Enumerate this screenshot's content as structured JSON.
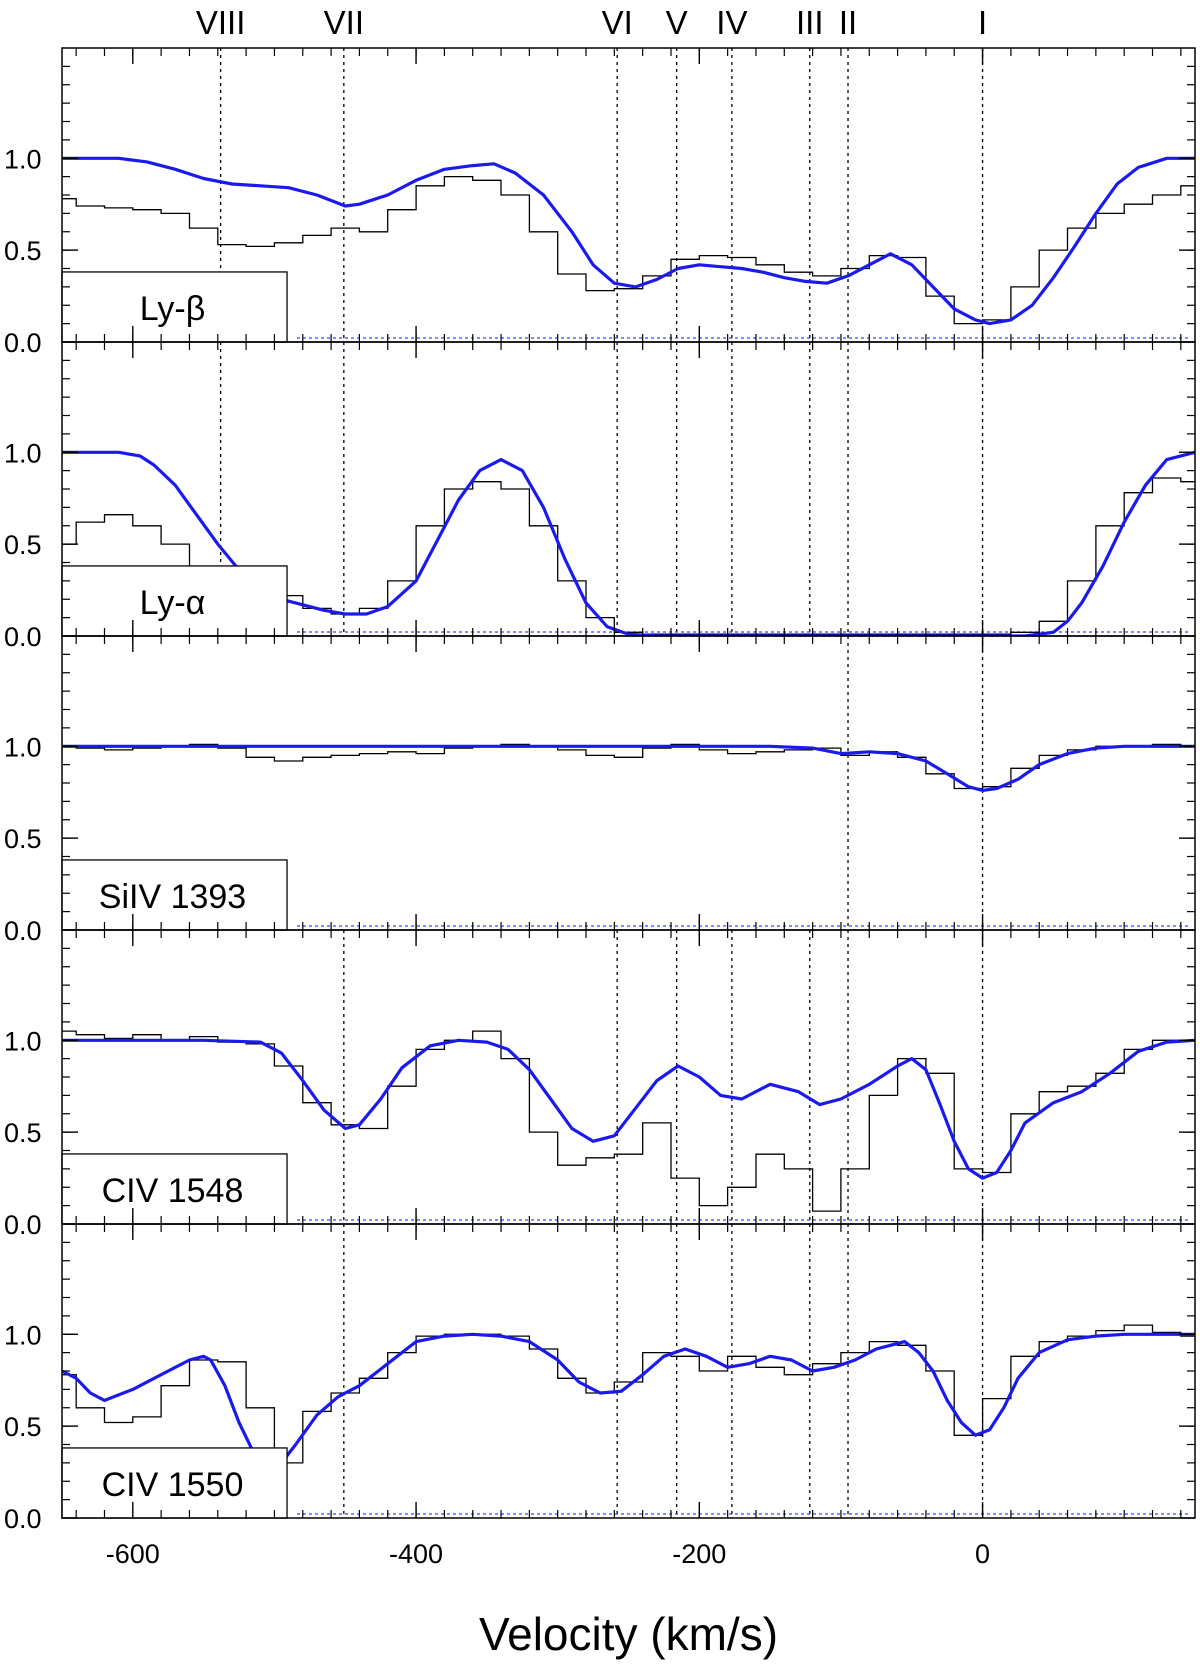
{
  "chart_data": {
    "type": "line",
    "xlabel": "Velocity (km/s)",
    "xlim": [
      -650,
      150
    ],
    "ylim": [
      0,
      1.6
    ],
    "x_ticks": [
      -600,
      -400,
      -200,
      0
    ],
    "x_tick_labels": [
      "-600",
      "-400",
      "-200",
      "0"
    ],
    "y_ticks": [
      0.0,
      0.5,
      1.0
    ],
    "y_tick_labels": [
      "0.0",
      "0.5",
      "1.0"
    ],
    "components": [
      {
        "name": "VIII",
        "v": -538
      },
      {
        "name": "VII",
        "v": -451
      },
      {
        "name": "VI",
        "v": -258
      },
      {
        "name": "V",
        "v": -216
      },
      {
        "name": "IV",
        "v": -177
      },
      {
        "name": "III",
        "v": -122
      },
      {
        "name": "II",
        "v": -95
      },
      {
        "name": "I",
        "v": 0
      }
    ],
    "panels": [
      {
        "label": "Ly-β",
        "lines": [
          "VIII",
          "VII",
          "VI",
          "V",
          "IV",
          "III",
          "II",
          "I"
        ],
        "data": {
          "x": [
            -650,
            -630,
            -610,
            -590,
            -570,
            -550,
            -530,
            -510,
            -490,
            -470,
            -450,
            -430,
            -410,
            -390,
            -370,
            -350,
            -330,
            -310,
            -290,
            -270,
            -250,
            -230,
            -210,
            -190,
            -170,
            -150,
            -130,
            -110,
            -90,
            -70,
            -50,
            -30,
            -10,
            10,
            30,
            50,
            70,
            90,
            110,
            130,
            150
          ],
          "y": [
            0.78,
            0.74,
            0.73,
            0.72,
            0.7,
            0.62,
            0.53,
            0.52,
            0.54,
            0.58,
            0.62,
            0.6,
            0.72,
            0.85,
            0.9,
            0.88,
            0.8,
            0.6,
            0.37,
            0.28,
            0.29,
            0.36,
            0.45,
            0.47,
            0.46,
            0.42,
            0.38,
            0.36,
            0.4,
            0.47,
            0.46,
            0.25,
            0.1,
            0.12,
            0.3,
            0.5,
            0.62,
            0.7,
            0.75,
            0.8,
            0.85
          ]
        },
        "fit": {
          "x": [
            -650,
            -630,
            -610,
            -590,
            -570,
            -550,
            -530,
            -510,
            -490,
            -470,
            -460,
            -450,
            -440,
            -420,
            -400,
            -380,
            -360,
            -345,
            -330,
            -310,
            -290,
            -275,
            -260,
            -245,
            -230,
            -215,
            -200,
            -185,
            -170,
            -155,
            -140,
            -125,
            -110,
            -95,
            -80,
            -65,
            -50,
            -35,
            -20,
            -5,
            5,
            20,
            35,
            50,
            65,
            80,
            95,
            110,
            130,
            150
          ],
          "y": [
            1.0,
            1.0,
            1.0,
            0.98,
            0.94,
            0.89,
            0.86,
            0.85,
            0.84,
            0.8,
            0.77,
            0.74,
            0.75,
            0.8,
            0.88,
            0.94,
            0.96,
            0.97,
            0.92,
            0.8,
            0.6,
            0.42,
            0.32,
            0.3,
            0.34,
            0.4,
            0.42,
            0.41,
            0.4,
            0.38,
            0.35,
            0.33,
            0.32,
            0.36,
            0.42,
            0.48,
            0.42,
            0.3,
            0.18,
            0.12,
            0.1,
            0.12,
            0.2,
            0.35,
            0.52,
            0.7,
            0.86,
            0.95,
            1.0,
            1.0
          ]
        }
      },
      {
        "label": "Ly-α",
        "lines": [
          "VIII",
          "VII",
          "VI",
          "V",
          "IV",
          "III",
          "II",
          "I"
        ],
        "data": {
          "x": [
            -650,
            -630,
            -610,
            -590,
            -570,
            -550,
            -530,
            -510,
            -490,
            -470,
            -450,
            -430,
            -410,
            -390,
            -370,
            -350,
            -330,
            -310,
            -290,
            -270,
            -250,
            -230,
            -210,
            -190,
            -170,
            -150,
            -130,
            -110,
            -90,
            -70,
            -50,
            -30,
            -10,
            10,
            30,
            50,
            70,
            90,
            110,
            130,
            150
          ],
          "y": [
            0.5,
            0.62,
            0.66,
            0.6,
            0.5,
            0.36,
            0.3,
            0.28,
            0.22,
            0.15,
            0.12,
            0.15,
            0.3,
            0.6,
            0.8,
            0.84,
            0.8,
            0.6,
            0.3,
            0.1,
            0.02,
            0.01,
            0.01,
            0.01,
            0.01,
            0.01,
            0.01,
            0.01,
            0.01,
            0.01,
            0.01,
            0.01,
            0.01,
            0.01,
            0.02,
            0.08,
            0.3,
            0.6,
            0.78,
            0.86,
            0.84
          ]
        },
        "fit": {
          "x": [
            -650,
            -630,
            -610,
            -595,
            -585,
            -570,
            -555,
            -540,
            -525,
            -510,
            -495,
            -480,
            -465,
            -450,
            -435,
            -420,
            -400,
            -385,
            -370,
            -355,
            -340,
            -325,
            -310,
            -295,
            -280,
            -265,
            -250,
            -230,
            -210,
            -150,
            -100,
            -50,
            0,
            30,
            50,
            60,
            70,
            85,
            100,
            115,
            130,
            150
          ],
          "y": [
            1.0,
            1.0,
            1.0,
            0.98,
            0.93,
            0.82,
            0.66,
            0.5,
            0.36,
            0.26,
            0.2,
            0.17,
            0.14,
            0.12,
            0.12,
            0.16,
            0.3,
            0.52,
            0.74,
            0.9,
            0.96,
            0.9,
            0.7,
            0.42,
            0.18,
            0.05,
            0.01,
            0.0,
            0.0,
            0.0,
            0.0,
            0.0,
            0.0,
            0.0,
            0.02,
            0.08,
            0.18,
            0.38,
            0.62,
            0.82,
            0.96,
            1.0
          ]
        }
      },
      {
        "label": "SiIV 1393",
        "lines": [
          "II",
          "I"
        ],
        "data": {
          "x": [
            -650,
            -630,
            -610,
            -590,
            -570,
            -550,
            -530,
            -510,
            -490,
            -470,
            -450,
            -430,
            -410,
            -390,
            -370,
            -350,
            -330,
            -310,
            -290,
            -270,
            -250,
            -230,
            -210,
            -190,
            -170,
            -150,
            -130,
            -110,
            -90,
            -70,
            -50,
            -30,
            -10,
            10,
            30,
            50,
            70,
            90,
            110,
            130,
            150
          ],
          "y": [
            1.0,
            0.99,
            0.98,
            0.99,
            1.0,
            1.01,
            0.99,
            0.94,
            0.92,
            0.94,
            0.95,
            0.96,
            0.97,
            0.96,
            0.99,
            1.0,
            1.01,
            1.0,
            0.98,
            0.95,
            0.94,
            0.99,
            1.01,
            0.98,
            0.96,
            0.97,
            0.98,
            0.99,
            0.95,
            0.97,
            0.94,
            0.85,
            0.77,
            0.78,
            0.88,
            0.95,
            0.98,
            1.0,
            1.0,
            1.01,
            1.0
          ]
        },
        "fit": {
          "x": [
            -650,
            -500,
            -300,
            -150,
            -120,
            -100,
            -80,
            -60,
            -40,
            -25,
            -10,
            0,
            10,
            25,
            40,
            60,
            80,
            100,
            150
          ],
          "y": [
            1.0,
            1.0,
            1.0,
            1.0,
            0.99,
            0.96,
            0.97,
            0.96,
            0.92,
            0.85,
            0.78,
            0.76,
            0.77,
            0.82,
            0.9,
            0.96,
            0.99,
            1.0,
            1.0
          ]
        }
      },
      {
        "label": "CIV 1548",
        "lines": [
          "VII",
          "VI",
          "V",
          "IV",
          "III",
          "II",
          "I"
        ],
        "data": {
          "x": [
            -650,
            -630,
            -610,
            -590,
            -570,
            -550,
            -530,
            -510,
            -490,
            -470,
            -450,
            -430,
            -410,
            -390,
            -370,
            -350,
            -330,
            -310,
            -290,
            -270,
            -250,
            -230,
            -210,
            -190,
            -170,
            -150,
            -130,
            -110,
            -90,
            -70,
            -50,
            -30,
            -10,
            10,
            30,
            50,
            70,
            90,
            110,
            130,
            150
          ],
          "y": [
            1.05,
            1.03,
            1.01,
            1.03,
            1.0,
            1.02,
            0.99,
            0.98,
            0.86,
            0.66,
            0.54,
            0.52,
            0.75,
            0.95,
            1.0,
            1.05,
            0.9,
            0.5,
            0.32,
            0.36,
            0.38,
            0.55,
            0.25,
            0.1,
            0.2,
            0.38,
            0.3,
            0.07,
            0.3,
            0.7,
            0.9,
            0.82,
            0.3,
            0.28,
            0.6,
            0.72,
            0.75,
            0.82,
            0.95,
            1.0,
            1.0
          ]
        },
        "fit": {
          "x": [
            -650,
            -600,
            -550,
            -510,
            -495,
            -480,
            -465,
            -450,
            -440,
            -425,
            -410,
            -390,
            -370,
            -350,
            -335,
            -320,
            -305,
            -290,
            -275,
            -260,
            -245,
            -230,
            -215,
            -200,
            -185,
            -170,
            -150,
            -130,
            -115,
            -100,
            -80,
            -60,
            -50,
            -40,
            -30,
            -20,
            -10,
            0,
            10,
            20,
            30,
            50,
            70,
            90,
            110,
            130,
            150
          ],
          "y": [
            1.0,
            1.0,
            1.0,
            0.99,
            0.93,
            0.78,
            0.62,
            0.52,
            0.54,
            0.68,
            0.85,
            0.97,
            1.0,
            0.99,
            0.95,
            0.84,
            0.68,
            0.52,
            0.45,
            0.48,
            0.63,
            0.78,
            0.86,
            0.8,
            0.7,
            0.68,
            0.76,
            0.72,
            0.65,
            0.68,
            0.76,
            0.86,
            0.9,
            0.84,
            0.65,
            0.45,
            0.3,
            0.25,
            0.28,
            0.4,
            0.55,
            0.66,
            0.72,
            0.82,
            0.94,
            0.99,
            1.0
          ]
        }
      },
      {
        "label": "CIV 1550",
        "lines": [
          "VII",
          "VI",
          "V",
          "IV",
          "III",
          "II",
          "I"
        ],
        "data": {
          "x": [
            -650,
            -630,
            -610,
            -590,
            -570,
            -550,
            -530,
            -510,
            -490,
            -470,
            -450,
            -430,
            -410,
            -390,
            -370,
            -350,
            -330,
            -310,
            -290,
            -270,
            -250,
            -230,
            -210,
            -190,
            -170,
            -150,
            -130,
            -110,
            -90,
            -70,
            -50,
            -30,
            -10,
            10,
            30,
            50,
            70,
            90,
            110,
            130,
            150
          ],
          "y": [
            0.78,
            0.6,
            0.52,
            0.55,
            0.72,
            0.86,
            0.85,
            0.6,
            0.3,
            0.58,
            0.68,
            0.76,
            0.9,
            0.99,
            1.0,
            1.0,
            0.99,
            0.92,
            0.76,
            0.68,
            0.74,
            0.9,
            0.88,
            0.8,
            0.88,
            0.82,
            0.78,
            0.84,
            0.9,
            0.96,
            0.94,
            0.8,
            0.45,
            0.65,
            0.88,
            0.96,
            0.99,
            1.02,
            1.05,
            1.01,
            0.99
          ]
        },
        "fit": {
          "x": [
            -650,
            -640,
            -630,
            -620,
            -600,
            -580,
            -560,
            -550,
            -545,
            -535,
            -525,
            -515,
            -505,
            -495,
            -485,
            -470,
            -455,
            -440,
            -420,
            -400,
            -380,
            -360,
            -340,
            -320,
            -300,
            -285,
            -270,
            -255,
            -240,
            -225,
            -210,
            -195,
            -180,
            -165,
            -150,
            -135,
            -120,
            -105,
            -90,
            -75,
            -55,
            -45,
            -35,
            -25,
            -15,
            -5,
            5,
            15,
            25,
            40,
            60,
            80,
            100,
            130,
            150
          ],
          "y": [
            0.8,
            0.76,
            0.68,
            0.64,
            0.7,
            0.78,
            0.86,
            0.88,
            0.86,
            0.72,
            0.52,
            0.36,
            0.28,
            0.3,
            0.4,
            0.56,
            0.66,
            0.72,
            0.84,
            0.96,
            0.99,
            1.0,
            0.99,
            0.96,
            0.86,
            0.74,
            0.68,
            0.69,
            0.78,
            0.88,
            0.92,
            0.88,
            0.82,
            0.84,
            0.88,
            0.86,
            0.8,
            0.82,
            0.86,
            0.92,
            0.96,
            0.9,
            0.8,
            0.64,
            0.52,
            0.45,
            0.48,
            0.6,
            0.76,
            0.9,
            0.97,
            0.99,
            1.0,
            1.0,
            1.0
          ]
        }
      }
    ]
  }
}
